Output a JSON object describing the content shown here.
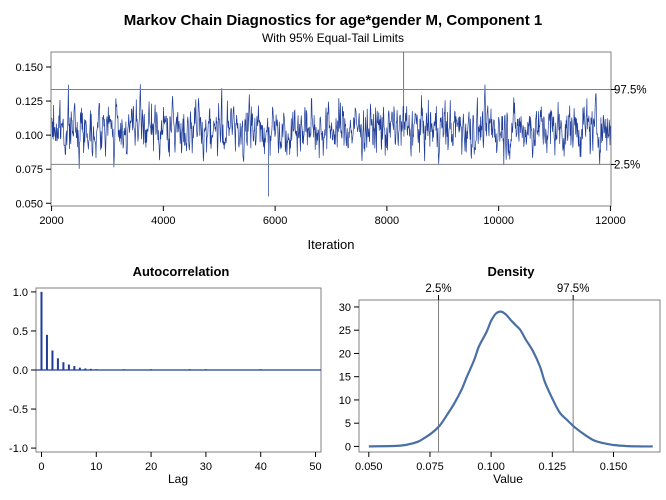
{
  "figure": {
    "title": "Markov Chain Diagnostics for age*gender M, Component 1",
    "subtitle": "With 95% Equal-Tail Limits"
  },
  "chart_data": [
    {
      "type": "line",
      "name": "trace",
      "xlabel": "Iteration",
      "ylabel": "",
      "xlim": [
        1990,
        12010
      ],
      "ylim": [
        0.048,
        0.161
      ],
      "xticks": [
        2000,
        4000,
        6000,
        8000,
        10000,
        12000
      ],
      "xtick_labels": [
        "2000",
        "4000",
        "6000",
        "8000",
        "10000",
        "12000"
      ],
      "yticks": [
        0.05,
        0.075,
        0.1,
        0.125,
        0.15
      ],
      "ytick_labels": [
        "0.050",
        "0.075",
        "0.100",
        "0.125",
        "0.150"
      ],
      "grid": false,
      "series_color": "#1f3d99",
      "mean": 0.105,
      "typical_band": [
        0.079,
        0.133
      ],
      "observed_range": [
        0.055,
        0.161
      ],
      "iterations": [
        2001,
        12000
      ],
      "reference_lines": [
        {
          "label": "97.5%",
          "y": 0.1335
        },
        {
          "label": "2.5%",
          "y": 0.0785
        }
      ]
    },
    {
      "type": "bar",
      "name": "autocorrelation",
      "title": "Autocorrelation",
      "xlabel": "Lag",
      "ylabel": "",
      "xlim": [
        -1,
        51
      ],
      "ylim": [
        -1.05,
        1.05
      ],
      "xticks": [
        0,
        10,
        20,
        30,
        40,
        50
      ],
      "xtick_labels": [
        "0",
        "10",
        "20",
        "30",
        "40",
        "50"
      ],
      "yticks": [
        -1.0,
        -0.5,
        0.0,
        0.5,
        1.0
      ],
      "ytick_labels": [
        "-1.0",
        "-0.5",
        "0.0",
        "0.5",
        "1.0"
      ],
      "grid": false,
      "series_color": "#1f3d99",
      "lags": [
        0,
        1,
        2,
        3,
        4,
        5,
        6,
        7,
        8,
        9,
        10,
        11,
        12,
        13,
        14,
        15,
        16,
        17,
        18,
        19,
        20,
        21,
        22,
        23,
        24,
        25,
        26,
        27,
        28,
        29,
        30,
        31,
        32,
        33,
        34,
        35,
        36,
        37,
        38,
        39,
        40,
        41,
        42,
        43,
        44,
        45,
        46,
        47,
        48,
        49,
        50
      ],
      "values": [
        1.0,
        0.45,
        0.25,
        0.15,
        0.1,
        0.07,
        0.05,
        0.03,
        0.02,
        0.015,
        0.01,
        0.0,
        0.0,
        0.005,
        -0.005,
        0.01,
        0.005,
        0.0,
        0.005,
        0.0,
        0.01,
        0.005,
        -0.005,
        0.005,
        0.0,
        0.0,
        0.005,
        0.01,
        0.0,
        -0.005,
        0.01,
        0.005,
        0.0,
        0.0,
        -0.005,
        0.005,
        0.0,
        0.005,
        0.0,
        0.005,
        0.01,
        0.0,
        -0.005,
        0.0,
        0.005,
        0.0,
        0.0,
        0.005,
        0.0,
        0.0,
        0.005
      ]
    },
    {
      "type": "line",
      "name": "density",
      "title": "Density",
      "xlabel": "Value",
      "ylabel": "",
      "xlim": [
        0.046,
        0.169
      ],
      "ylim": [
        -1.2,
        31.5
      ],
      "xticks": [
        0.05,
        0.075,
        0.1,
        0.125,
        0.15
      ],
      "xtick_labels": [
        "0.050",
        "0.075",
        "0.100",
        "0.125",
        "0.150"
      ],
      "yticks": [
        0,
        5,
        10,
        15,
        20,
        25,
        30
      ],
      "ytick_labels": [
        "0",
        "5",
        "10",
        "15",
        "20",
        "25",
        "30"
      ],
      "grid": false,
      "series_color": "#4a6fa5",
      "x": [
        0.05,
        0.06,
        0.065,
        0.07,
        0.073,
        0.076,
        0.079,
        0.082,
        0.085,
        0.088,
        0.09,
        0.093,
        0.095,
        0.098,
        0.1,
        0.102,
        0.104,
        0.106,
        0.108,
        0.11,
        0.112,
        0.114,
        0.117,
        0.12,
        0.122,
        0.125,
        0.128,
        0.131,
        0.134,
        0.138,
        0.142,
        0.146,
        0.15,
        0.155,
        0.16,
        0.166
      ],
      "y": [
        0.0,
        0.1,
        0.3,
        1.0,
        1.9,
        3.0,
        4.5,
        6.8,
        9.3,
        12.3,
        14.9,
        18.5,
        21.5,
        24.5,
        27.0,
        28.6,
        29.0,
        28.4,
        27.2,
        26.1,
        25.0,
        23.1,
        20.6,
        17.1,
        13.8,
        10.3,
        7.3,
        5.7,
        4.2,
        2.6,
        1.3,
        0.7,
        0.3,
        0.1,
        0.0,
        0.0
      ],
      "reference_lines": [
        {
          "label": "2.5%",
          "x": 0.0785
        },
        {
          "label": "97.5%",
          "x": 0.1335
        }
      ]
    }
  ]
}
